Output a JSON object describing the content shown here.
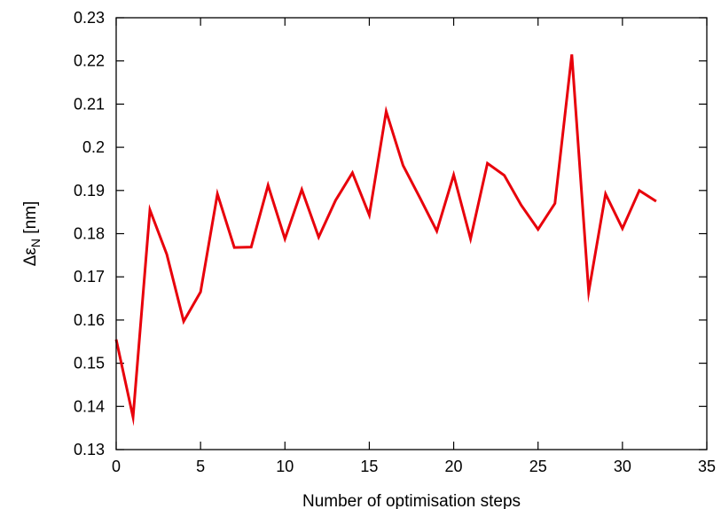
{
  "chart_data": {
    "type": "line",
    "title": "",
    "xlabel": "Number of optimisation steps",
    "ylabel_main": "Δε",
    "ylabel_sub": "N",
    "ylabel_unit": " [nm]",
    "xlim": [
      0,
      35
    ],
    "ylim": [
      0.13,
      0.23
    ],
    "xticks": [
      "0",
      "5",
      "10",
      "15",
      "20",
      "25",
      "30",
      "35"
    ],
    "yticks": [
      "0.13",
      "0.14",
      "0.15",
      "0.16",
      "0.17",
      "0.18",
      "0.19",
      "0.2",
      "0.21",
      "0.22",
      "0.23"
    ],
    "grid": false,
    "legend": "none",
    "series": [
      {
        "color": "#e8000b",
        "x": [
          0,
          1,
          2,
          3,
          4,
          5,
          6,
          7,
          8,
          9,
          10,
          11,
          12,
          13,
          14,
          15,
          16,
          17,
          18,
          19,
          20,
          21,
          22,
          23,
          24,
          25,
          26,
          27,
          28,
          29,
          30,
          31,
          32
        ],
        "y": [
          0.1555,
          0.1375,
          0.1855,
          0.1752,
          0.1597,
          0.1665,
          0.1892,
          0.1768,
          0.1769,
          0.1912,
          0.1788,
          0.1902,
          0.1792,
          0.1877,
          0.1941,
          0.1843,
          0.2083,
          0.1958,
          0.1883,
          0.1806,
          0.1936,
          0.1788,
          0.1963,
          0.1935,
          0.1866,
          0.181,
          0.187,
          0.2215,
          0.1665,
          0.1892,
          0.1812,
          0.19,
          0.1875
        ]
      }
    ]
  }
}
